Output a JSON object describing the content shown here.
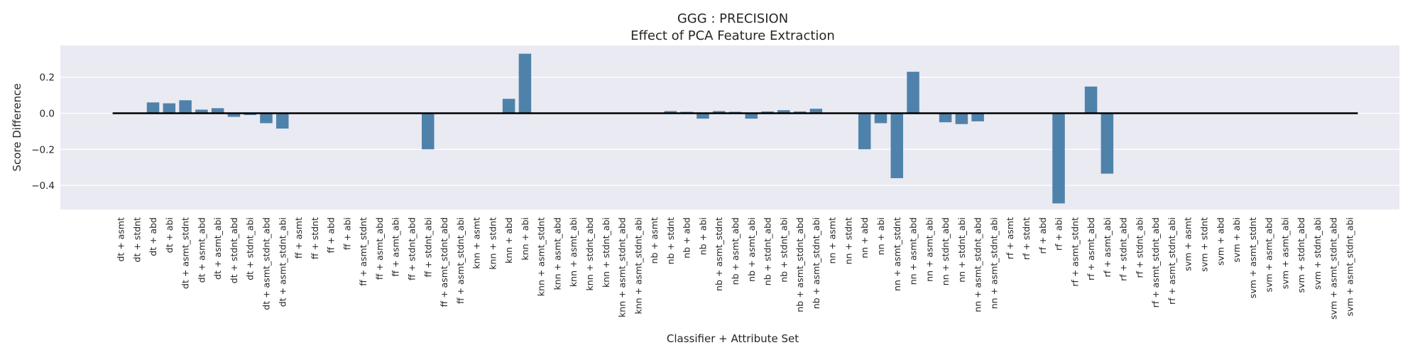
{
  "chart_data": {
    "type": "bar",
    "title": "GGG : PRECISION",
    "subtitle": "Effect of PCA Feature Extraction",
    "xlabel": "Classifier + Attribute Set",
    "ylabel": "Score Difference",
    "ylim": [
      -0.54,
      0.37
    ],
    "yticks": [
      0.2,
      0.0,
      -0.2,
      -0.4
    ],
    "ytick_labels": [
      "0.2",
      "0.0",
      "−0.2",
      "−0.4"
    ],
    "grid": true,
    "colors": {
      "bar": "#4f82ab",
      "plot_bg": "#eaeaf2",
      "grid": "#ffffff",
      "zero_line": "#000000"
    },
    "categories": [
      "dt + asmt",
      "dt + stdnt",
      "dt + abd",
      "dt + abi",
      "dt + asmt_stdnt",
      "dt + asmt_abd",
      "dt + asmt_abi",
      "dt + stdnt_abd",
      "dt + stdnt_abi",
      "dt + asmt_stdnt_abd",
      "dt + asmt_stdnt_abi",
      "ff + asmt",
      "ff + stdnt",
      "ff + abd",
      "ff + abi",
      "ff + asmt_stdnt",
      "ff + asmt_abd",
      "ff + asmt_abi",
      "ff + stdnt_abd",
      "ff + stdnt_abi",
      "ff + asmt_stdnt_abd",
      "ff + asmt_stdnt_abi",
      "knn + asmt",
      "knn + stdnt",
      "knn + abd",
      "knn + abi",
      "knn + asmt_stdnt",
      "knn + asmt_abd",
      "knn + asmt_abi",
      "knn + stdnt_abd",
      "knn + stdnt_abi",
      "knn + asmt_stdnt_abd",
      "knn + asmt_stdnt_abi",
      "nb + asmt",
      "nb + stdnt",
      "nb + abd",
      "nb + abi",
      "nb + asmt_stdnt",
      "nb + asmt_abd",
      "nb + asmt_abi",
      "nb + stdnt_abd",
      "nb + stdnt_abi",
      "nb + asmt_stdnt_abd",
      "nb + asmt_stdnt_abi",
      "nn + asmt",
      "nn + stdnt",
      "nn + abd",
      "nn + abi",
      "nn + asmt_stdnt",
      "nn + asmt_abd",
      "nn + asmt_abi",
      "nn + stdnt_abd",
      "nn + stdnt_abi",
      "nn + asmt_stdnt_abd",
      "nn + asmt_stdnt_abi",
      "rf + asmt",
      "rf + stdnt",
      "rf + abd",
      "rf + abi",
      "rf + asmt_stdnt",
      "rf + asmt_abd",
      "rf + asmt_abi",
      "rf + stdnt_abd",
      "rf + stdnt_abi",
      "rf + asmt_stdnt_abd",
      "rf + asmt_stdnt_abi",
      "svm + asmt",
      "svm + stdnt",
      "svm + abd",
      "svm + abi",
      "svm + asmt_stdnt",
      "svm + asmt_abd",
      "svm + asmt_abi",
      "svm + stdnt_abd",
      "svm + stdnt_abi",
      "svm + asmt_stdnt_abd",
      "svm + asmt_stdnt_abi"
    ],
    "values": [
      0,
      0,
      0.06,
      0.055,
      0.072,
      0.02,
      0.028,
      -0.02,
      -0.01,
      -0.055,
      -0.085,
      0,
      0,
      0,
      0,
      0,
      0,
      0,
      0,
      -0.2,
      0,
      0,
      0,
      0,
      0.08,
      0.33,
      0,
      0,
      0,
      0,
      0,
      0,
      0,
      0,
      0.012,
      0.008,
      -0.03,
      0.012,
      0.008,
      -0.03,
      0.01,
      0.017,
      0.01,
      0.025,
      0,
      0,
      -0.2,
      -0.055,
      -0.36,
      0.23,
      0,
      -0.05,
      -0.06,
      -0.045,
      0,
      0,
      0,
      0,
      -0.5,
      0,
      0.148,
      -0.335,
      0,
      0,
      0,
      0,
      0,
      0,
      0,
      0,
      0,
      0,
      0,
      0,
      0,
      0,
      0
    ]
  }
}
